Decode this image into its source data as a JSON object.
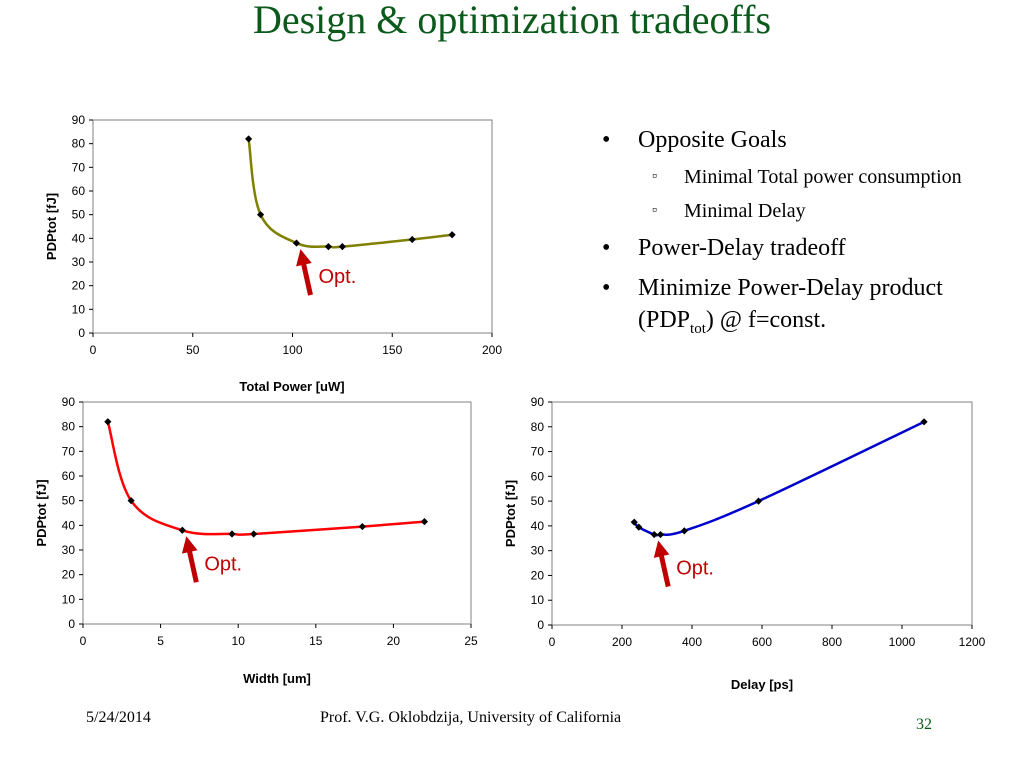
{
  "slide": {
    "title": "Design & optimization tradeoffs",
    "bullets": [
      {
        "text": "Opposite Goals",
        "sub": [
          "Minimal Total power consumption",
          "Minimal Delay"
        ]
      },
      {
        "text": "Power-Delay tradeoff",
        "sub": []
      },
      {
        "text_before": "Minimize Power-Delay product (PDP",
        "subscript": "tot",
        "text_after": ") @  f=const."
      }
    ],
    "footer": {
      "date": "5/24/2014",
      "author": "Prof. V.G. Oklobdzija, University of California",
      "page": "32"
    }
  },
  "chart_data": [
    {
      "type": "line",
      "xlabel": "Total Power [uW]",
      "ylabel": "PDPtot [fJ]",
      "xlim": [
        0,
        200
      ],
      "ylim": [
        0,
        90
      ],
      "xticks": [
        0,
        50,
        100,
        150,
        200
      ],
      "yticks": [
        0,
        10,
        20,
        30,
        40,
        50,
        60,
        70,
        80,
        90
      ],
      "grid": false,
      "color": "#808000",
      "series": [
        {
          "x": [
            78,
            84,
            102,
            118,
            125,
            160,
            180
          ],
          "y": [
            82,
            50,
            38,
            36.5,
            36.5,
            39.5,
            41.5
          ]
        }
      ],
      "annotation": {
        "text": "Opt.",
        "x": 102,
        "y": 38
      }
    },
    {
      "type": "line",
      "xlabel": "Width [um]",
      "ylabel": "PDPtot [fJ]",
      "xlim": [
        0,
        25
      ],
      "ylim": [
        0,
        90
      ],
      "xticks": [
        0,
        5,
        10,
        15,
        20,
        25
      ],
      "yticks": [
        0,
        10,
        20,
        30,
        40,
        50,
        60,
        70,
        80,
        90
      ],
      "grid": false,
      "color": "#ff0000",
      "series": [
        {
          "x": [
            1.6,
            3.1,
            6.4,
            9.6,
            11,
            18,
            22
          ],
          "y": [
            82,
            50,
            38,
            36.5,
            36.5,
            39.5,
            41.5
          ]
        }
      ],
      "annotation": {
        "text": "Opt.",
        "x": 6.4,
        "y": 38
      }
    },
    {
      "type": "line",
      "xlabel": "Delay [ps]",
      "ylabel": "PDPtot [fJ]",
      "xlim": [
        0,
        1200
      ],
      "ylim": [
        0,
        90
      ],
      "xticks": [
        0,
        200,
        400,
        600,
        800,
        1000,
        1200
      ],
      "yticks": [
        0,
        10,
        20,
        30,
        40,
        50,
        60,
        70,
        80,
        90
      ],
      "grid": false,
      "color": "#0000cc",
      "series": [
        {
          "x": [
            235,
            248,
            292,
            310,
            378,
            590,
            1063
          ],
          "y": [
            41.5,
            39.5,
            36.5,
            36.5,
            38,
            50,
            82
          ]
        }
      ],
      "annotation": {
        "text": "Opt.",
        "x": 292,
        "y": 36.5
      }
    }
  ]
}
